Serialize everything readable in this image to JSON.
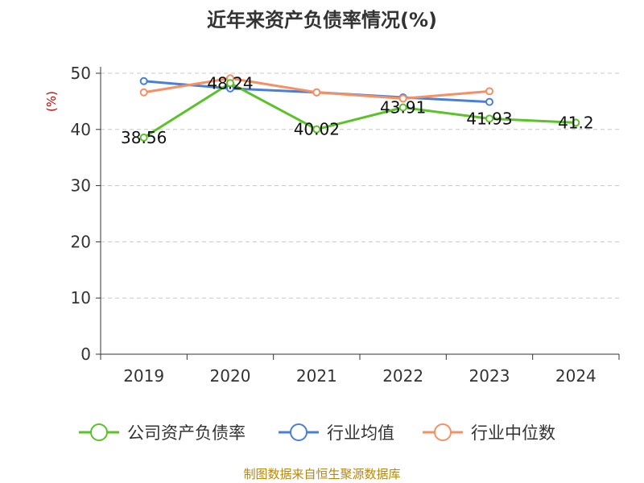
{
  "chart_data": {
    "type": "line",
    "title": "近年来资产负债率情况(%)",
    "ylabel": "(%)",
    "ylim": [
      0,
      50
    ],
    "yticks": [
      0,
      10,
      20,
      30,
      40,
      50
    ],
    "grid": true,
    "legend_position": "bottom",
    "categories": [
      "2019",
      "2020",
      "2021",
      "2022",
      "2023",
      "2024"
    ],
    "series": [
      {
        "name": "公司资产负债率",
        "color": "#5cc22a",
        "values": [
          38.56,
          48.24,
          40.02,
          43.91,
          41.93,
          41.2
        ],
        "labels": [
          "38.56",
          "48.24",
          "40.02",
          "43.91",
          "41.93",
          "41.2"
        ]
      },
      {
        "name": "行业均值",
        "color": "#4a7fd6",
        "values": [
          48.6,
          47.3,
          46.6,
          45.7,
          44.9,
          null
        ]
      },
      {
        "name": "行业中位数",
        "color": "#f59065",
        "values": [
          46.6,
          49.1,
          46.6,
          45.5,
          46.8,
          null
        ]
      }
    ]
  },
  "footer": {
    "source": "制图数据来自恒生聚源数据库"
  }
}
